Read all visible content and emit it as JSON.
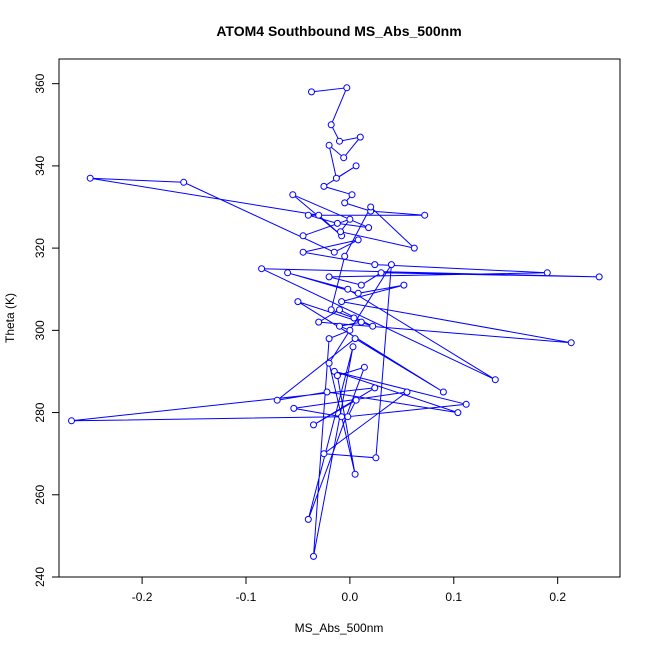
{
  "chart_data": {
    "type": "line",
    "title": "ATOM4 Southbound MS_Abs_500nm",
    "xlabel": "MS_Abs_500nm",
    "ylabel": "Theta (K)",
    "xlim": [
      -0.28,
      0.26
    ],
    "ylim": [
      240,
      366
    ],
    "xticks": [
      -0.2,
      -0.1,
      0.0,
      0.1,
      0.2
    ],
    "xtick_labels": [
      "-0.2",
      "-0.1",
      "0.0",
      "0.1",
      "0.2"
    ],
    "yticks": [
      240,
      260,
      280,
      300,
      320,
      340,
      360
    ],
    "ytick_labels": [
      "240",
      "260",
      "280",
      "300",
      "320",
      "340",
      "360"
    ],
    "grid": false,
    "series_color": "#0000ff",
    "x": [
      -0.037,
      -0.003,
      -0.018,
      -0.01,
      0.01,
      -0.006,
      -0.02,
      -0.013,
      0.006,
      -0.025,
      0.002,
      -0.005,
      0.02,
      0.072,
      -0.04,
      -0.012,
      0.018,
      -0.055,
      -0.008,
      -0.03,
      -0.25,
      -0.16,
      -0.015,
      0.008,
      -0.045,
      0.024,
      0.19,
      -0.02,
      0.011,
      0.03,
      0.24,
      -0.085,
      0.14,
      -0.002,
      -0.06,
      0.008,
      0.052,
      -0.008,
      0.213,
      -0.03,
      -0.01,
      0.022,
      -0.05,
      0.09,
      0.005,
      -0.07,
      -0.022,
      0.104,
      -0.015,
      0.112,
      -0.002,
      0.006,
      -0.035,
      0.024,
      -0.268,
      -0.008,
      -0.054,
      0.055,
      -0.025,
      0.025,
      0.04,
      -0.02,
      0.005,
      -0.012,
      0.014,
      -0.04,
      0.003,
      -0.035,
      -0.02,
      0.0,
      -0.01,
      0.011,
      0.004,
      -0.018,
      -0.005,
      0.02,
      0.062,
      -0.009,
      0.0,
      -0.045
    ],
    "y": [
      358,
      359,
      350,
      346,
      347,
      342,
      345,
      337,
      340,
      335,
      333,
      331,
      329,
      328,
      328,
      326,
      325,
      333,
      323,
      328,
      337,
      336,
      319,
      322,
      319,
      316,
      314,
      313,
      311,
      314,
      313,
      315,
      288,
      310,
      314,
      309,
      311,
      307,
      297,
      302,
      305,
      301,
      307,
      285,
      298,
      283,
      285,
      280,
      290,
      282,
      279,
      283,
      277,
      286,
      278,
      279,
      281,
      285,
      270,
      269,
      316,
      292,
      265,
      289,
      291,
      254,
      296,
      245,
      298,
      300,
      301,
      302,
      303,
      305,
      318,
      330,
      320,
      324,
      327,
      323
    ]
  }
}
